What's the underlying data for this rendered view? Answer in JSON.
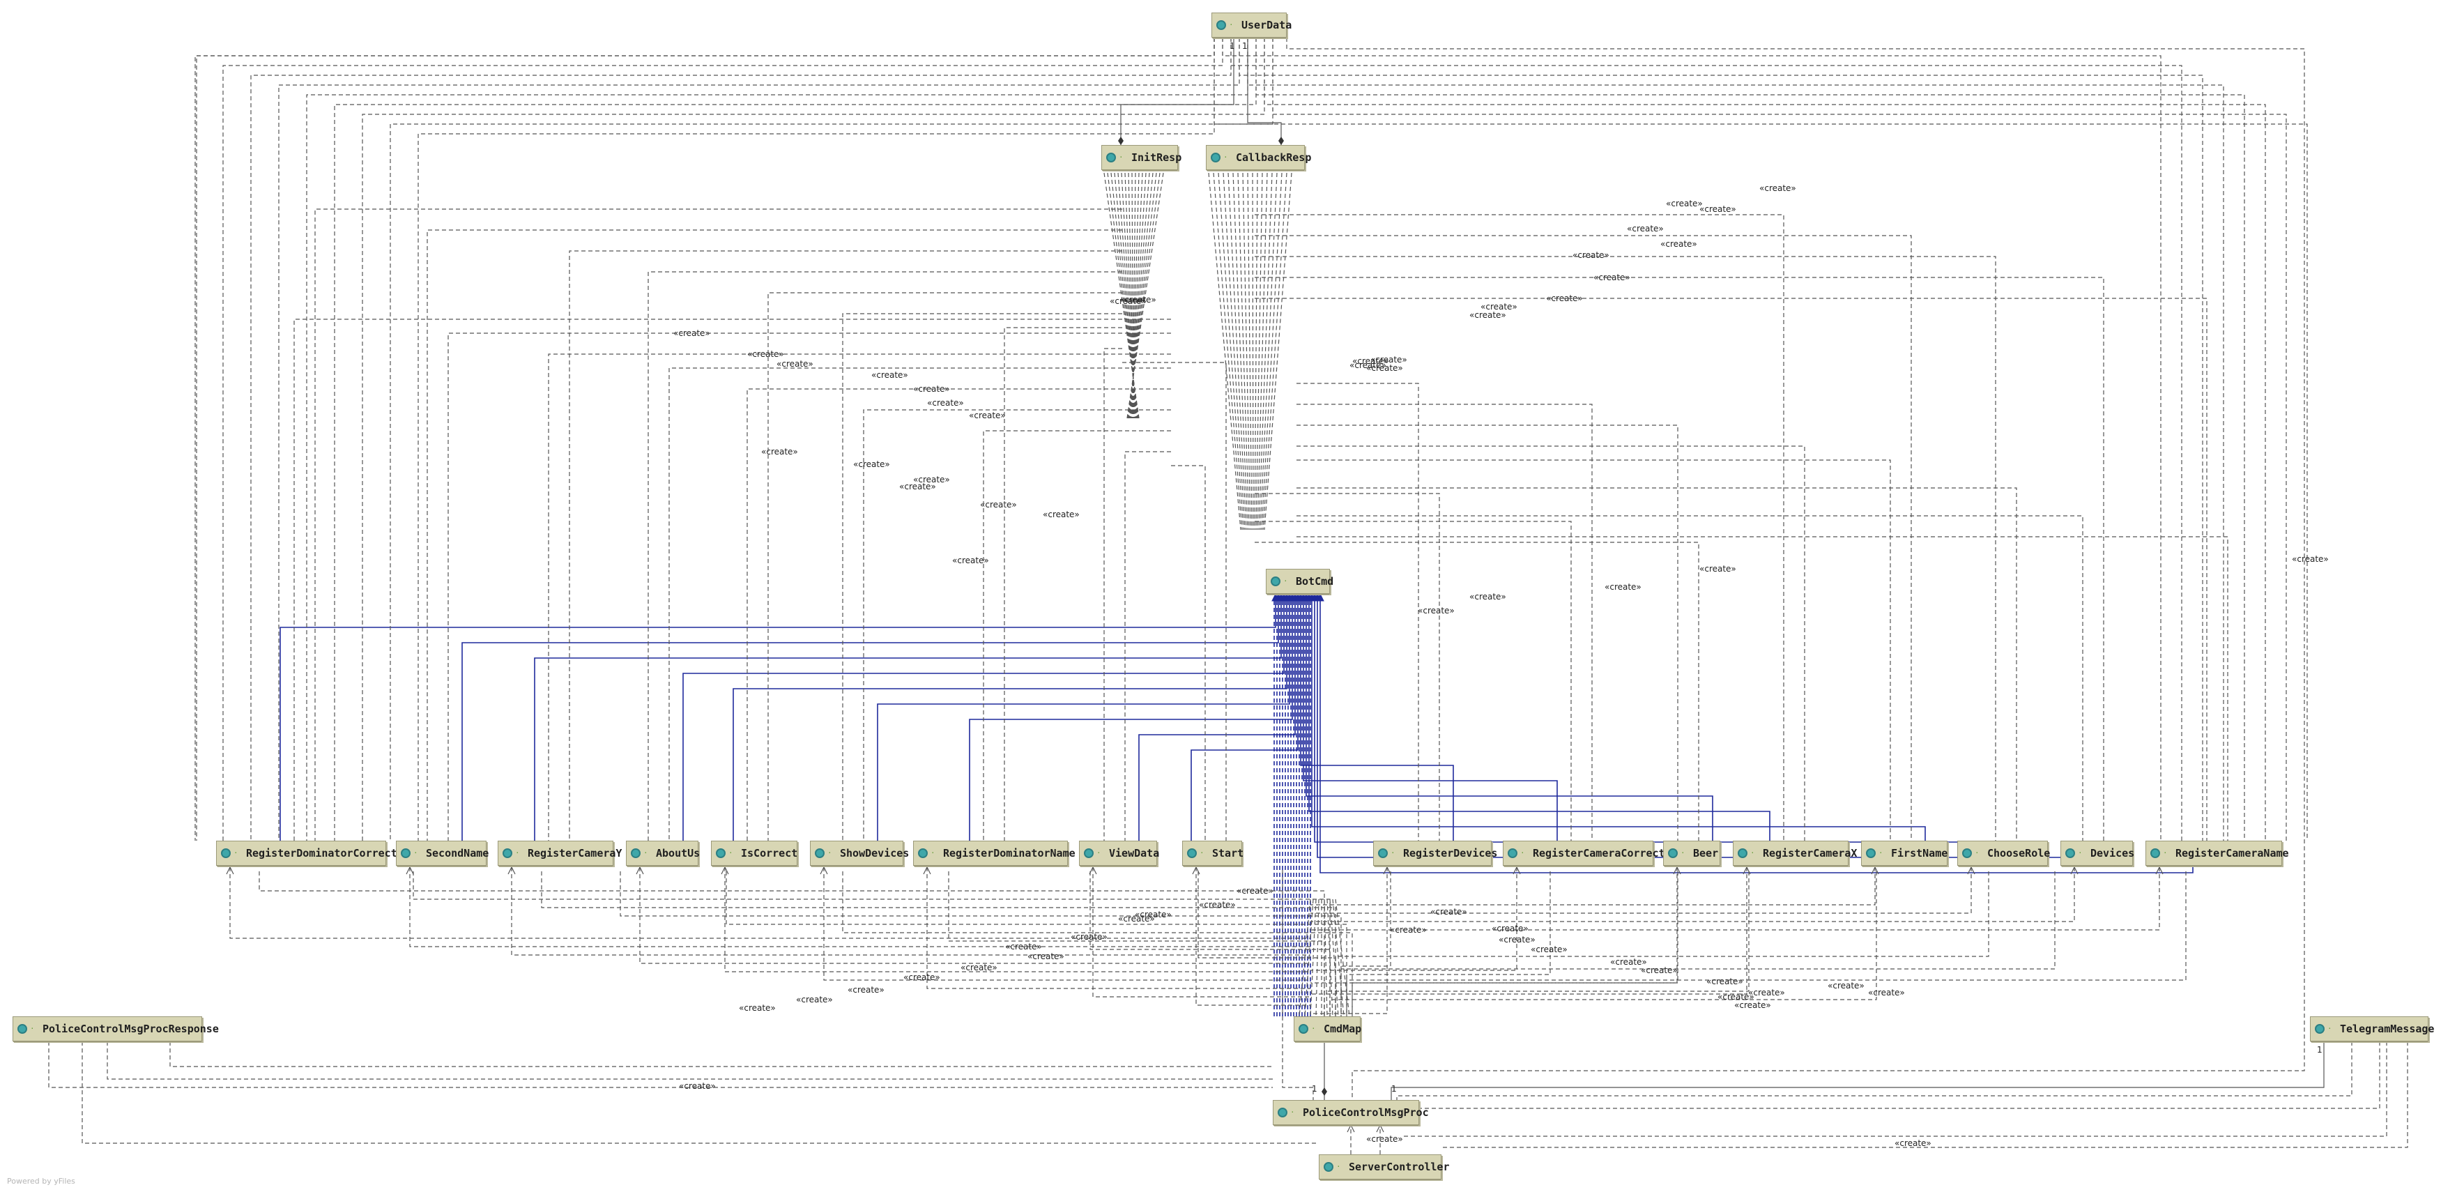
{
  "nodes": {
    "userdata": "UserData",
    "initresp": "InitResp",
    "callbackresp": "CallbackResp",
    "botcmd": "BotCmd",
    "cmdmap": "CmdMap",
    "registerdominatorcorrect": "RegisterDominatorCorrect",
    "secondname": "SecondName",
    "registercameray": "RegisterCameraY",
    "aboutus": "AboutUs",
    "iscorrect": "IsCorrect",
    "showdevices": "ShowDevices",
    "registerdominatorname": "RegisterDominatorName",
    "viewdata": "ViewData",
    "start": "Start",
    "registerdevices": "RegisterDevices",
    "registercameracorrect": "RegisterCameraCorrect",
    "beer": "Beer",
    "registercamerax": "RegisterCameraX",
    "firstname": "FirstName",
    "chooserole": "ChooseRole",
    "devices": "Devices",
    "registercameraname": "RegisterCameraName",
    "policecontrolmsgprocresponse": "PoliceControlMsgProcResponse",
    "telegrammessage": "TelegramMessage",
    "policecontrolmsgproc": "PoliceControlMsgProc",
    "servercontroller": "ServerController"
  },
  "create_label": "«create»",
  "multiplicity": "1",
  "footer": "Powered by yFiles",
  "colors": {
    "node_fill": "#d8d6b4",
    "dependency": "#555555",
    "inheritance": "#1f2a9c",
    "icon": "#3fa7a9"
  }
}
